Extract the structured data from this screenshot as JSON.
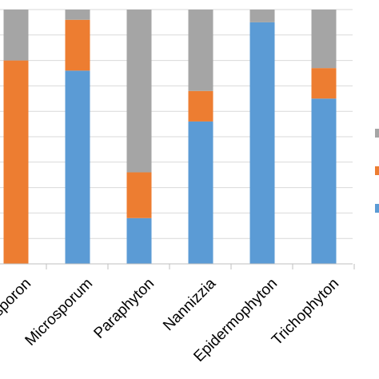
{
  "chart_data": {
    "type": "bar",
    "stacked": true,
    "normalized": true,
    "ylim": [
      0,
      100
    ],
    "grid": true,
    "legend_placement": "right",
    "categories": [
      "Trichosporon",
      "Microsporum",
      "Paraphyton",
      "Nannizzia",
      "Epidermophyton",
      "Trichophyton"
    ],
    "series": [
      {
        "color": "#5b9bd5",
        "values": [
          0,
          76,
          18,
          56,
          95,
          65
        ]
      },
      {
        "color": "#ed7d31",
        "values": [
          80,
          20,
          18,
          12,
          0,
          12
        ]
      },
      {
        "color": "#a5a5a5",
        "values": [
          20,
          4,
          64,
          32,
          5,
          23
        ]
      }
    ]
  }
}
